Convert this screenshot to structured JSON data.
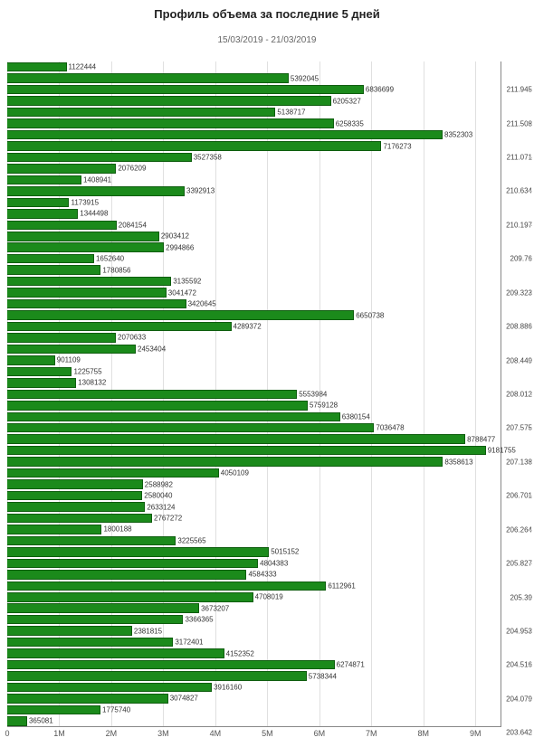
{
  "chart": {
    "type": "bar-horizontal",
    "title": "Профиль объема за последние 5 дней",
    "subtitle": "15/03/2019 - 21/03/2019",
    "background_color": "#ffffff",
    "grid_color": "#e0e0e0",
    "axis_color": "#888888",
    "text_color": "#333333",
    "title_fontsize": 13,
    "subtitle_fontsize": 10,
    "label_fontsize": 8,
    "xaxis": {
      "min": 0,
      "max": 9500000,
      "ticks": [
        0,
        1000000,
        2000000,
        3000000,
        4000000,
        5000000,
        6000000,
        7000000,
        8000000,
        9000000
      ],
      "tick_labels": [
        "0",
        "1M",
        "2M",
        "3M",
        "4M",
        "5M",
        "6M",
        "7M",
        "8M",
        "9M"
      ]
    },
    "yaxis": {
      "ticks": [
        {
          "pos": 2,
          "label": "211.945"
        },
        {
          "pos": 5,
          "label": "211.508"
        },
        {
          "pos": 8,
          "label": "211.071"
        },
        {
          "pos": 11,
          "label": "210.634"
        },
        {
          "pos": 14,
          "label": "210.197"
        },
        {
          "pos": 17,
          "label": "209.76"
        },
        {
          "pos": 20,
          "label": "209.323"
        },
        {
          "pos": 23,
          "label": "208.886"
        },
        {
          "pos": 26,
          "label": "208.449"
        },
        {
          "pos": 29,
          "label": "208.012"
        },
        {
          "pos": 32,
          "label": "207.575"
        },
        {
          "pos": 35,
          "label": "207.138"
        },
        {
          "pos": 38,
          "label": "206.701"
        },
        {
          "pos": 41,
          "label": "206.264"
        },
        {
          "pos": 44,
          "label": "205.827"
        },
        {
          "pos": 47,
          "label": "205.39"
        },
        {
          "pos": 50,
          "label": "204.953"
        },
        {
          "pos": 53,
          "label": "204.516"
        },
        {
          "pos": 56,
          "label": "204.079"
        },
        {
          "pos": 59,
          "label": "203.642"
        }
      ]
    },
    "bar_color": "#1b8a1b",
    "bar_border_color": "#0e5d0e",
    "bars": [
      {
        "value": 1122444,
        "label": "1122444"
      },
      {
        "value": 5392045,
        "label": "5392045"
      },
      {
        "value": 6836699,
        "label": "6836699"
      },
      {
        "value": 6205327,
        "label": "6205327"
      },
      {
        "value": 5138717,
        "label": "5138717"
      },
      {
        "value": 6258335,
        "label": "6258335"
      },
      {
        "value": 8352303,
        "label": "8352303"
      },
      {
        "value": 7176273,
        "label": "7176273"
      },
      {
        "value": 3527358,
        "label": "3527358"
      },
      {
        "value": 2076209,
        "label": "2076209"
      },
      {
        "value": 1408941,
        "label": "1408941"
      },
      {
        "value": 3392913,
        "label": "3392913"
      },
      {
        "value": 1173915,
        "label": "1173915"
      },
      {
        "value": 1344498,
        "label": "1344498"
      },
      {
        "value": 2084154,
        "label": "2084154"
      },
      {
        "value": 2903412,
        "label": "2903412"
      },
      {
        "value": 2994866,
        "label": "2994866"
      },
      {
        "value": 1652640,
        "label": "1652640"
      },
      {
        "value": 1780856,
        "label": "1780856"
      },
      {
        "value": 3135592,
        "label": "3135592"
      },
      {
        "value": 3041472,
        "label": "3041472"
      },
      {
        "value": 3420645,
        "label": "3420645"
      },
      {
        "value": 6650738,
        "label": "6650738"
      },
      {
        "value": 4289372,
        "label": "4289372"
      },
      {
        "value": 2070633,
        "label": "2070633"
      },
      {
        "value": 2453404,
        "label": "2453404"
      },
      {
        "value": 901109,
        "label": "901109"
      },
      {
        "value": 1225755,
        "label": "1225755"
      },
      {
        "value": 1308132,
        "label": "1308132"
      },
      {
        "value": 5553984,
        "label": "5553984"
      },
      {
        "value": 5759128,
        "label": "5759128"
      },
      {
        "value": 6380154,
        "label": "6380154"
      },
      {
        "value": 7036478,
        "label": "7036478"
      },
      {
        "value": 8788477,
        "label": "8788477"
      },
      {
        "value": 9181755,
        "label": "9181755"
      },
      {
        "value": 8358613,
        "label": "8358613"
      },
      {
        "value": 4050109,
        "label": "4050109"
      },
      {
        "value": 2588982,
        "label": "2588982"
      },
      {
        "value": 2580040,
        "label": "2580040"
      },
      {
        "value": 2633124,
        "label": "2633124"
      },
      {
        "value": 2767272,
        "label": "2767272"
      },
      {
        "value": 1800188,
        "label": "1800188"
      },
      {
        "value": 3225565,
        "label": "3225565"
      },
      {
        "value": 5015152,
        "label": "5015152"
      },
      {
        "value": 4804383,
        "label": "4804383"
      },
      {
        "value": 4584333,
        "label": "4584333"
      },
      {
        "value": 6112961,
        "label": "6112961"
      },
      {
        "value": 4708019,
        "label": "4708019"
      },
      {
        "value": 3673207,
        "label": "3673207"
      },
      {
        "value": 3366365,
        "label": "3366365"
      },
      {
        "value": 2381815,
        "label": "2381815"
      },
      {
        "value": 3172401,
        "label": "3172401"
      },
      {
        "value": 4152352,
        "label": "4152352"
      },
      {
        "value": 6274871,
        "label": "6274871"
      },
      {
        "value": 5738344,
        "label": "5738344"
      },
      {
        "value": 3916160,
        "label": "3916160"
      },
      {
        "value": 3074827,
        "label": "3074827"
      },
      {
        "value": 1775740,
        "label": "1775740"
      },
      {
        "value": 365081,
        "label": "365081"
      }
    ]
  }
}
